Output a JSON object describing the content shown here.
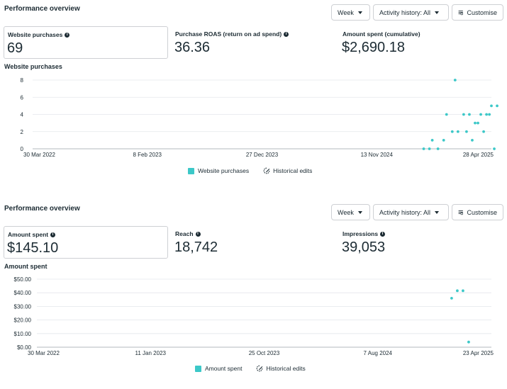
{
  "panels": [
    {
      "title": "Performance overview",
      "controls": {
        "week": "Week",
        "activity": "Activity history: All",
        "customise": "Customise"
      },
      "metrics": [
        {
          "label": "Website purchases",
          "value": "69",
          "info": true
        },
        {
          "label": "Purchase ROAS (return on ad spend)",
          "value": "36.36",
          "info": true
        },
        {
          "label": "Amount spent (cumulative)",
          "value": "$2,690.18",
          "info": false
        }
      ],
      "chart_title": "Website purchases",
      "legend": {
        "series": "Website purchases",
        "edits": "Historical edits"
      }
    },
    {
      "title": "Performance overview",
      "controls": {
        "week": "Week",
        "activity": "Activity history: All",
        "customise": "Customise"
      },
      "metrics": [
        {
          "label": "Amount spent",
          "value": "$145.10",
          "info": true
        },
        {
          "label": "Reach",
          "value": "18,742",
          "info": true
        },
        {
          "label": "Impressions",
          "value": "39,053",
          "info": true
        }
      ],
      "chart_title": "Amount spent",
      "legend": {
        "series": "Amount spent",
        "edits": "Historical edits"
      }
    }
  ],
  "chart_data": [
    {
      "type": "scatter",
      "title": "Website purchases",
      "x_tick_labels": [
        "30 Mar 2022",
        "8 Feb 2023",
        "27 Dec 2023",
        "13 Nov 2024",
        "28 Apr 2025"
      ],
      "y_ticks": [
        0,
        2,
        4,
        6,
        8
      ],
      "y_tick_labels": [
        "0",
        "2",
        "4",
        "6",
        "8"
      ],
      "ylim": [
        0,
        8
      ],
      "x_range": [
        "2022-03-30",
        "2025-04-28"
      ],
      "series": [
        {
          "name": "Website purchases",
          "color": "#3cc8c8",
          "points": [
            {
              "x": "2024-11-13",
              "y": 0
            },
            {
              "x": "2024-11-27",
              "y": 0
            },
            {
              "x": "2024-12-04",
              "y": 1
            },
            {
              "x": "2024-12-18",
              "y": 0
            },
            {
              "x": "2025-01-01",
              "y": 1
            },
            {
              "x": "2025-01-08",
              "y": 4
            },
            {
              "x": "2025-01-22",
              "y": 2
            },
            {
              "x": "2025-01-29",
              "y": 8
            },
            {
              "x": "2025-02-05",
              "y": 2
            },
            {
              "x": "2025-02-19",
              "y": 4
            },
            {
              "x": "2025-02-26",
              "y": 2
            },
            {
              "x": "2025-03-05",
              "y": 4
            },
            {
              "x": "2025-03-12",
              "y": 1
            },
            {
              "x": "2025-03-19",
              "y": 3
            },
            {
              "x": "2025-03-26",
              "y": 3
            },
            {
              "x": "2025-04-02",
              "y": 4
            },
            {
              "x": "2025-04-09",
              "y": 2
            },
            {
              "x": "2025-04-16",
              "y": 4
            },
            {
              "x": "2025-04-23",
              "y": 4
            },
            {
              "x": "2025-04-28",
              "y": 5
            },
            {
              "x": "2025-05-05",
              "y": 0
            },
            {
              "x": "2025-05-12",
              "y": 5
            }
          ]
        }
      ],
      "grid": true
    },
    {
      "type": "scatter",
      "title": "Amount spent",
      "x_tick_labels": [
        "30 Mar 2022",
        "11 Jan 2023",
        "25 Oct 2023",
        "7 Aug 2024",
        "23 Apr 2025"
      ],
      "y_ticks": [
        0,
        10,
        20,
        30,
        40,
        50
      ],
      "y_tick_labels": [
        "$0.00",
        "$10.00",
        "$20.00",
        "$30.00",
        "$40.00",
        "$50.00"
      ],
      "ylim": [
        0,
        50
      ],
      "x_range": [
        "2022-03-30",
        "2025-04-23"
      ],
      "series": [
        {
          "name": "Amount spent",
          "color": "#3cc8c8",
          "points": [
            {
              "x": "2025-01-15",
              "y": 36
            },
            {
              "x": "2025-01-29",
              "y": 41.5
            },
            {
              "x": "2025-02-12",
              "y": 41.5
            },
            {
              "x": "2025-02-26",
              "y": 3.8
            }
          ]
        }
      ],
      "grid": true
    }
  ]
}
